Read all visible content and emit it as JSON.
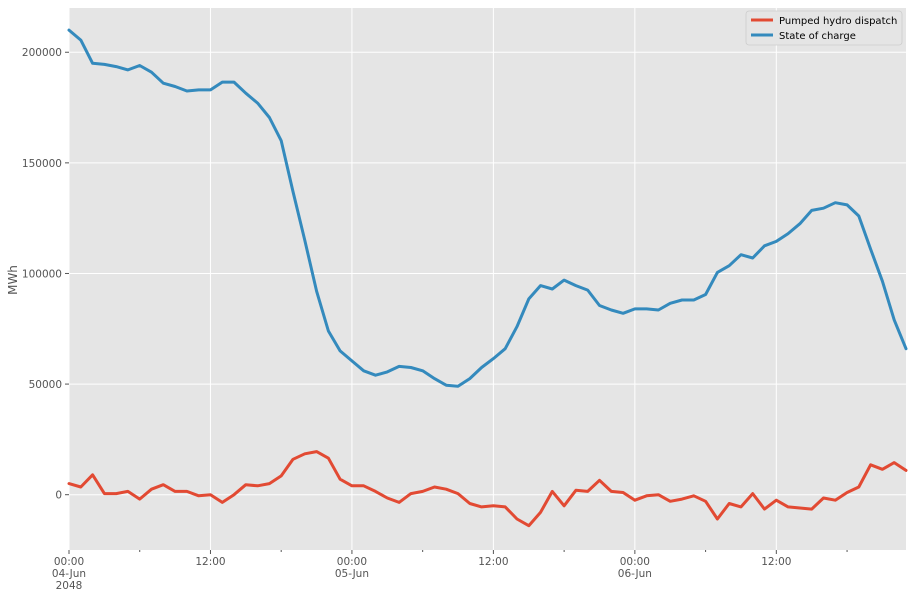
{
  "chart_data": {
    "type": "line",
    "ylabel": "MWh",
    "ylim": [
      -25000,
      220000
    ],
    "y_ticks": [
      0,
      50000,
      100000,
      150000,
      200000
    ],
    "x_ticks": [
      {
        "hour": 0,
        "lines": [
          "00:00",
          "04-Jun",
          "2048"
        ]
      },
      {
        "hour": 12,
        "lines": [
          "12:00"
        ]
      },
      {
        "hour": 24,
        "lines": [
          "00:00",
          "05-Jun"
        ]
      },
      {
        "hour": 36,
        "lines": [
          "12:00"
        ]
      },
      {
        "hour": 48,
        "lines": [
          "00:00",
          "06-Jun"
        ]
      },
      {
        "hour": 60,
        "lines": [
          "12:00"
        ]
      }
    ],
    "xlim": [
      0,
      71
    ],
    "grid": true,
    "legend_position": "top-right",
    "series": [
      {
        "name": "Pumped hydro dispatch",
        "color": "#E24A33",
        "values": [
          5000,
          3500,
          9000,
          500,
          500,
          1500,
          -2000,
          2500,
          4500,
          1500,
          1500,
          -500,
          0,
          -3500,
          0,
          4500,
          4000,
          5000,
          8500,
          16000,
          18500,
          19500,
          16500,
          7000,
          4000,
          4000,
          1500,
          -1500,
          -3500,
          500,
          1500,
          3500,
          2500,
          500,
          -4000,
          -5500,
          -5000,
          -5500,
          -11000,
          -14000,
          -8000,
          1500,
          -5000,
          2000,
          1500,
          6500,
          1500,
          1000,
          -2500,
          -500,
          0,
          -3000,
          -2000,
          -500,
          -3000,
          -11000,
          -4000,
          -5500,
          500,
          -6500,
          -2500,
          -5500,
          -6000,
          -6500,
          -1500,
          -2500,
          1000,
          3500,
          13500,
          11500,
          14500,
          11000
        ]
      },
      {
        "name": "State of charge",
        "color": "#348ABD",
        "values": [
          210000,
          205500,
          195000,
          194500,
          193500,
          192000,
          194000,
          191000,
          186000,
          184500,
          182500,
          183000,
          183000,
          186500,
          186500,
          181500,
          177000,
          170500,
          160000,
          137000,
          115000,
          92000,
          74000,
          65000,
          60500,
          56000,
          54000,
          55500,
          58000,
          57500,
          56000,
          52500,
          49500,
          49000,
          52500,
          57500,
          61500,
          66000,
          76000,
          88500,
          94500,
          93000,
          97000,
          94500,
          92500,
          85500,
          83500,
          82000,
          84000,
          84000,
          83500,
          86500,
          88000,
          88000,
          90500,
          100500,
          103500,
          108500,
          107000,
          112500,
          114500,
          118000,
          122500,
          128500,
          129500,
          132000,
          131000,
          126000,
          111000,
          96500,
          79000,
          66000
        ]
      }
    ]
  }
}
